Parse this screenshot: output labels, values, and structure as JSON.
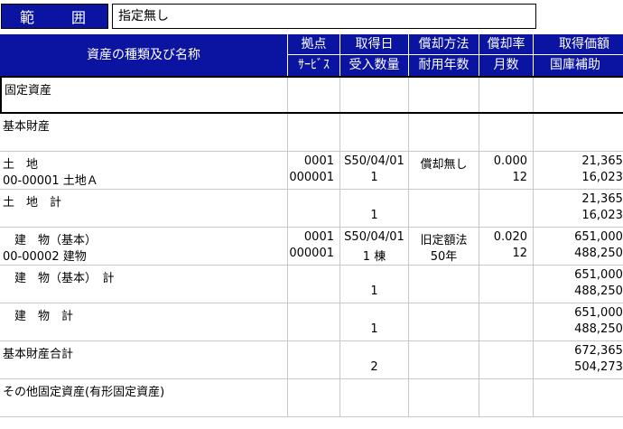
{
  "range": {
    "label": "範 囲",
    "value": "指定無し"
  },
  "header": {
    "name": "資産の種類及び名称",
    "c1": [
      "拠点",
      "ｻｰﾋﾞｽ"
    ],
    "c2": [
      "取得日",
      "受入数量"
    ],
    "c3": [
      "償却方法",
      "耐用年数"
    ],
    "c4": [
      "償却率",
      "月数"
    ],
    "c5": [
      "取得価額",
      "国庫補助"
    ]
  },
  "rows": [
    {
      "name1": "固定資産",
      "name2": "",
      "c1a": "",
      "c1b": "",
      "c2a": "",
      "c2b": "",
      "c3a": "",
      "c3b": "",
      "c4a": "",
      "c4b": "",
      "c5a": "",
      "c5b": ""
    },
    {
      "name1": "基本財産",
      "name2": "",
      "c1a": "",
      "c1b": "",
      "c2a": "",
      "c2b": "",
      "c3a": "",
      "c3b": "",
      "c4a": "",
      "c4b": "",
      "c5a": "",
      "c5b": ""
    },
    {
      "name1": " 土　地",
      "name2": "00-00001 土地Ａ",
      "c1a": "0001",
      "c1b": "000001",
      "c2a": "S50/04/01",
      "c2b": "1",
      "c3a": "償却無し",
      "c3b": "",
      "c4a": "0.000",
      "c4b": "12",
      "c5a": "21,365,",
      "c5b": "16,023,"
    },
    {
      "name1": " 土　地　計",
      "name2": "",
      "c1a": "",
      "c1b": "",
      "c2a": "",
      "c2b": "1",
      "c3a": "",
      "c3b": "",
      "c4a": "",
      "c4b": "",
      "c5a": "21,365,",
      "c5b": "16,023,"
    },
    {
      "name1": "　建　物（基本）",
      "name2": "00-00002 建物",
      "c1a": "0001",
      "c1b": "000001",
      "c2a": "S50/04/01",
      "c2b": "1 棟",
      "c3a": "旧定額法",
      "c3b": "50年",
      "c4a": "0.020",
      "c4b": "12",
      "c5a": "651,000,",
      "c5b": "488,250,"
    },
    {
      "name1": "　建　物（基本）　計",
      "name2": "",
      "c1a": "",
      "c1b": "",
      "c2a": "",
      "c2b": "1",
      "c3a": "",
      "c3b": "",
      "c4a": "",
      "c4b": "",
      "c5a": "651,000,",
      "c5b": "488,250,"
    },
    {
      "name1": "　建　物　計",
      "name2": "",
      "c1a": "",
      "c1b": "",
      "c2a": "",
      "c2b": "1",
      "c3a": "",
      "c3b": "",
      "c4a": "",
      "c4b": "",
      "c5a": "651,000,",
      "c5b": "488,250,"
    },
    {
      "name1": "基本財産合計",
      "name2": "",
      "c1a": "",
      "c1b": "",
      "c2a": "",
      "c2b": "2",
      "c3a": "",
      "c3b": "",
      "c4a": "",
      "c4b": "",
      "c5a": "672,365,",
      "c5b": "504,273,"
    },
    {
      "name1": "その他固定資産(有形固定資産)",
      "name2": "",
      "c1a": "",
      "c1b": "",
      "c2a": "",
      "c2b": "",
      "c3a": "",
      "c3b": "",
      "c4a": "",
      "c4b": "",
      "c5a": "",
      "c5b": ""
    }
  ]
}
